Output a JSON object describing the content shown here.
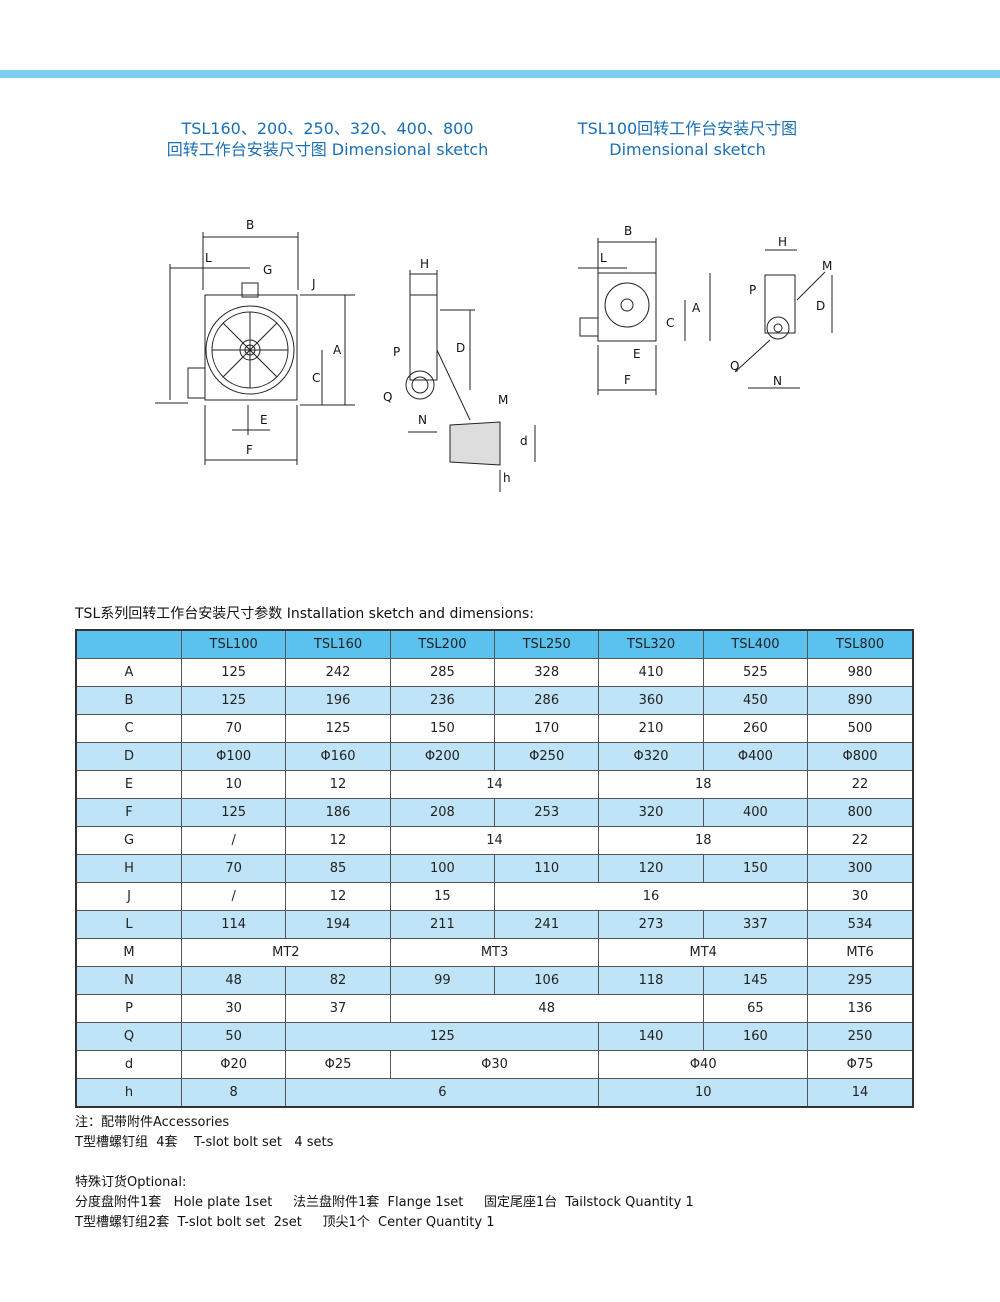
{
  "titles": {
    "left_line1": "TSL160、200、250、320、400、800",
    "left_line2": "回转工作台安装尺寸图 Dimensional sketch",
    "right_line1": "TSL100回转工作台安装尺寸图",
    "right_line2": "Dimensional sketch"
  },
  "drawing_labels": {
    "front_large": [
      "B",
      "L",
      "G",
      "J",
      "A",
      "C",
      "E",
      "F"
    ],
    "side_large": [
      "H",
      "P",
      "D",
      "Q",
      "N",
      "M",
      "d",
      "h"
    ],
    "front_small": [
      "B",
      "L",
      "A",
      "C",
      "E",
      "F"
    ],
    "side_small": [
      "H",
      "M",
      "P",
      "D",
      "Q",
      "N"
    ]
  },
  "table": {
    "caption": "TSL系列回转工作台安装尺寸参数 Installation sketch and dimensions:",
    "header": [
      "",
      "TSL100",
      "TSL160",
      "TSL200",
      "TSL250",
      "TSL320",
      "TSL400",
      "TSL800"
    ],
    "rows": [
      [
        {
          "v": "A"
        },
        {
          "v": "125"
        },
        {
          "v": "242"
        },
        {
          "v": "285"
        },
        {
          "v": "328"
        },
        {
          "v": "410"
        },
        {
          "v": "525"
        },
        {
          "v": "980"
        }
      ],
      [
        {
          "v": "B"
        },
        {
          "v": "125"
        },
        {
          "v": "196"
        },
        {
          "v": "236"
        },
        {
          "v": "286"
        },
        {
          "v": "360"
        },
        {
          "v": "450"
        },
        {
          "v": "890"
        }
      ],
      [
        {
          "v": "C"
        },
        {
          "v": "70"
        },
        {
          "v": "125"
        },
        {
          "v": "150"
        },
        {
          "v": "170"
        },
        {
          "v": "210"
        },
        {
          "v": "260"
        },
        {
          "v": "500"
        }
      ],
      [
        {
          "v": "D"
        },
        {
          "v": "Φ100"
        },
        {
          "v": "Φ160"
        },
        {
          "v": "Φ200"
        },
        {
          "v": "Φ250"
        },
        {
          "v": "Φ320"
        },
        {
          "v": "Φ400"
        },
        {
          "v": "Φ800"
        }
      ],
      [
        {
          "v": "E"
        },
        {
          "v": "10"
        },
        {
          "v": "12"
        },
        {
          "v": "14",
          "span": 2
        },
        {
          "v": "18",
          "span": 2
        },
        {
          "v": "22"
        }
      ],
      [
        {
          "v": "F"
        },
        {
          "v": "125"
        },
        {
          "v": "186"
        },
        {
          "v": "208"
        },
        {
          "v": "253"
        },
        {
          "v": "320"
        },
        {
          "v": "400"
        },
        {
          "v": "800"
        }
      ],
      [
        {
          "v": "G"
        },
        {
          "v": "/"
        },
        {
          "v": "12"
        },
        {
          "v": "14",
          "span": 2
        },
        {
          "v": "18",
          "span": 2
        },
        {
          "v": "22"
        }
      ],
      [
        {
          "v": "H"
        },
        {
          "v": "70"
        },
        {
          "v": "85"
        },
        {
          "v": "100"
        },
        {
          "v": "110"
        },
        {
          "v": "120"
        },
        {
          "v": "150"
        },
        {
          "v": "300"
        }
      ],
      [
        {
          "v": "J"
        },
        {
          "v": "/"
        },
        {
          "v": "12"
        },
        {
          "v": "15"
        },
        {
          "v": "16",
          "span": 3
        },
        {
          "v": "30"
        }
      ],
      [
        {
          "v": "L"
        },
        {
          "v": "114"
        },
        {
          "v": "194"
        },
        {
          "v": "211"
        },
        {
          "v": "241"
        },
        {
          "v": "273"
        },
        {
          "v": "337"
        },
        {
          "v": "534"
        }
      ],
      [
        {
          "v": "M"
        },
        {
          "v": "MT2",
          "span": 2
        },
        {
          "v": "MT3",
          "span": 2
        },
        {
          "v": "MT4",
          "span": 2
        },
        {
          "v": "MT6"
        }
      ],
      [
        {
          "v": "N"
        },
        {
          "v": "48"
        },
        {
          "v": "82"
        },
        {
          "v": "99"
        },
        {
          "v": "106"
        },
        {
          "v": "118"
        },
        {
          "v": "145"
        },
        {
          "v": "295"
        }
      ],
      [
        {
          "v": "P"
        },
        {
          "v": "30"
        },
        {
          "v": "37"
        },
        {
          "v": "48",
          "span": 3
        },
        {
          "v": "65"
        },
        {
          "v": "136"
        }
      ],
      [
        {
          "v": "Q"
        },
        {
          "v": "50"
        },
        {
          "v": "125",
          "span": 3
        },
        {
          "v": "140"
        },
        {
          "v": "160"
        },
        {
          "v": "250"
        }
      ],
      [
        {
          "v": "d"
        },
        {
          "v": "Φ20"
        },
        {
          "v": "Φ25"
        },
        {
          "v": "Φ30",
          "span": 2
        },
        {
          "v": "Φ40",
          "span": 2
        },
        {
          "v": "Φ75"
        }
      ],
      [
        {
          "v": "h"
        },
        {
          "v": "8"
        },
        {
          "v": "6",
          "span": 3
        },
        {
          "v": "10",
          "span": 2
        },
        {
          "v": "14"
        }
      ]
    ]
  },
  "notes": {
    "accessories_title": "注：配带附件Accessories",
    "accessories_line": "T型槽螺钉组  4套    T-slot bolt set   4 sets",
    "optional_title": "特殊订货Optional:",
    "optional_line1": "分度盘附件1套   Hole plate 1set     法兰盘附件1套  Flange 1set     固定尾座1台  Tailstock Quantity 1",
    "optional_line2": "T型槽螺钉组2套  T-slot bolt set  2set     顶尖1个  Center Quantity 1"
  },
  "colors": {
    "band": "#7fcdf0",
    "title": "#1a6fb5",
    "header": "#5bc2ef",
    "alt_row": "#bfe4f7"
  }
}
